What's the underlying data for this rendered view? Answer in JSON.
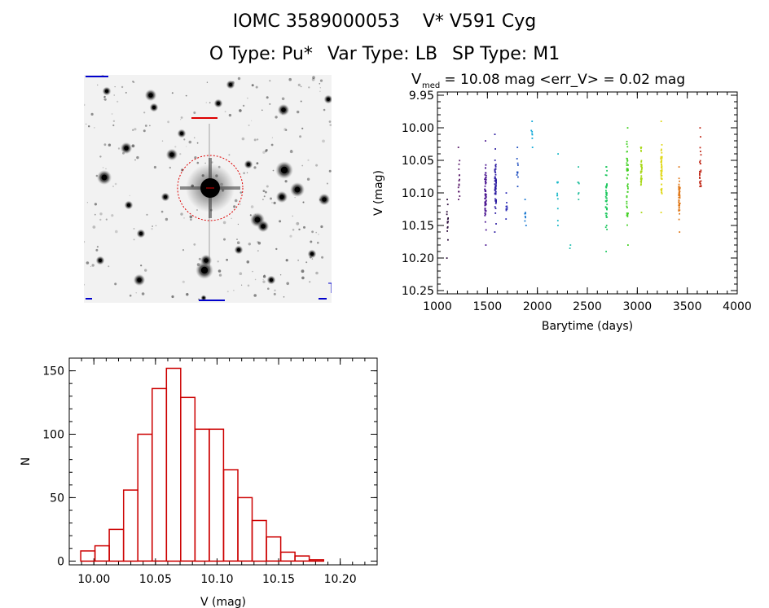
{
  "header": {
    "star_id": "IOMC 3589000053",
    "star_name": "V* V591 Cyg",
    "o_type": "O Type: Pu*",
    "var_type": "Var Type: LB",
    "sp_type": "SP Type: M1"
  },
  "colors": {
    "axes": "#000000",
    "histogram": "#cc0000",
    "aperture": "#dd0000",
    "image_labels": "#0000cc"
  },
  "image_panel": {
    "description": "stellar field image, red circular aperture around bright central star"
  },
  "chart_data": [
    {
      "type": "scatter",
      "title_main": "V",
      "title_sub": "med",
      "title_rest": " = 10.08 mag <err_V> = 0.02 mag",
      "xlabel": "Barytime (days)",
      "ylabel": "V (mag)",
      "xlim": [
        1000,
        4000
      ],
      "ylim": [
        10.255,
        9.945
      ],
      "y_inverted": true,
      "xticks": [
        1000,
        1500,
        2000,
        2500,
        3000,
        3500,
        4000
      ],
      "yticks": [
        9.95,
        10.0,
        10.05,
        10.1,
        10.15,
        10.2,
        10.25
      ],
      "ytick_labels": [
        "9.95",
        "10.00",
        "10.05",
        "10.10",
        "10.15",
        "10.20",
        "10.25"
      ],
      "grid": false,
      "groups": [
        {
          "x": 1100,
          "ymin": 10.11,
          "ymax": 10.2,
          "center": 10.14,
          "n": 14,
          "color": "#2a0a3a"
        },
        {
          "x": 1215,
          "ymin": 10.03,
          "ymax": 10.11,
          "center": 10.08,
          "n": 16,
          "color": "#5a1a6a"
        },
        {
          "x": 1480,
          "ymin": 10.02,
          "ymax": 10.18,
          "center": 10.1,
          "n": 60,
          "color": "#4a1590"
        },
        {
          "x": 1580,
          "ymin": 10.01,
          "ymax": 10.16,
          "center": 10.09,
          "n": 55,
          "color": "#2a1aa0"
        },
        {
          "x": 1690,
          "ymin": 10.1,
          "ymax": 10.14,
          "center": 10.12,
          "n": 10,
          "color": "#3030b8"
        },
        {
          "x": 1800,
          "ymin": 10.03,
          "ymax": 10.09,
          "center": 10.06,
          "n": 10,
          "color": "#2050c0"
        },
        {
          "x": 1880,
          "ymin": 10.11,
          "ymax": 10.15,
          "center": 10.13,
          "n": 8,
          "color": "#1a78d0"
        },
        {
          "x": 1945,
          "ymin": 9.99,
          "ymax": 10.03,
          "center": 10.01,
          "n": 7,
          "color": "#10a8d8"
        },
        {
          "x": 2200,
          "ymin": 10.04,
          "ymax": 10.15,
          "center": 10.1,
          "n": 12,
          "color": "#18b8c8"
        },
        {
          "x": 2330,
          "ymin": 10.18,
          "ymax": 10.185,
          "center": 10.18,
          "n": 2,
          "color": "#20c0b0"
        },
        {
          "x": 2410,
          "ymin": 10.06,
          "ymax": 10.11,
          "center": 10.09,
          "n": 7,
          "color": "#28c0a0"
        },
        {
          "x": 2690,
          "ymin": 10.06,
          "ymax": 10.19,
          "center": 10.11,
          "n": 45,
          "color": "#20c860"
        },
        {
          "x": 2900,
          "ymin": 10.0,
          "ymax": 10.18,
          "center": 10.08,
          "n": 45,
          "color": "#40d020"
        },
        {
          "x": 3040,
          "ymin": 10.03,
          "ymax": 10.13,
          "center": 10.07,
          "n": 35,
          "color": "#a8d818"
        },
        {
          "x": 3240,
          "ymin": 9.99,
          "ymax": 10.13,
          "center": 10.06,
          "n": 45,
          "color": "#e0d818"
        },
        {
          "x": 3420,
          "ymin": 10.06,
          "ymax": 10.16,
          "center": 10.11,
          "n": 45,
          "color": "#e07818"
        },
        {
          "x": 3630,
          "ymin": 10.0,
          "ymax": 10.09,
          "center": 10.06,
          "n": 25,
          "color": "#c02818"
        }
      ]
    },
    {
      "type": "histogram",
      "xlabel": "V (mag)",
      "ylabel": "N",
      "xlim": [
        9.98,
        10.23
      ],
      "ylim": [
        -3,
        160
      ],
      "xticks": [
        10.0,
        10.05,
        10.1,
        10.15,
        10.2
      ],
      "xtick_labels": [
        "10.00",
        "10.05",
        "10.10",
        "10.15",
        "10.20"
      ],
      "yticks": [
        0,
        50,
        100,
        150
      ],
      "grid": false,
      "bin_width": 0.0116,
      "bins": [
        {
          "left": 9.9893,
          "count": 8
        },
        {
          "left": 10.0009,
          "count": 12
        },
        {
          "left": 10.0125,
          "count": 25
        },
        {
          "left": 10.0241,
          "count": 56
        },
        {
          "left": 10.0357,
          "count": 100
        },
        {
          "left": 10.0473,
          "count": 136
        },
        {
          "left": 10.0589,
          "count": 152
        },
        {
          "left": 10.0705,
          "count": 129
        },
        {
          "left": 10.0821,
          "count": 104
        },
        {
          "left": 10.0937,
          "count": 104
        },
        {
          "left": 10.1053,
          "count": 72
        },
        {
          "left": 10.1169,
          "count": 50
        },
        {
          "left": 10.1285,
          "count": 32
        },
        {
          "left": 10.1401,
          "count": 19
        },
        {
          "left": 10.1517,
          "count": 7
        },
        {
          "left": 10.1633,
          "count": 4
        },
        {
          "left": 10.1749,
          "count": 1
        }
      ]
    }
  ]
}
